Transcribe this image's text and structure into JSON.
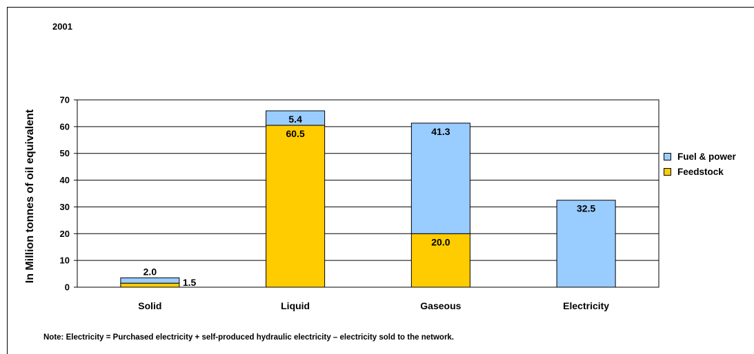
{
  "chart_data": {
    "type": "bar",
    "stacked": true,
    "title": "2001",
    "ylabel": "In Million tonnes of oil equivalent",
    "xlabel": "",
    "ylim": [
      0,
      70
    ],
    "yticks": [
      0,
      10,
      20,
      30,
      40,
      50,
      60,
      70
    ],
    "grid": true,
    "legend_position": "right",
    "categories": [
      "Solid",
      "Liquid",
      "Gaseous",
      "Electricity"
    ],
    "series": [
      {
        "name": "Feedstock",
        "color": "#FFCC00",
        "values": [
          1.5,
          60.5,
          20.0,
          0
        ],
        "labels": [
          "1.5",
          "60.5",
          "20.0",
          ""
        ]
      },
      {
        "name": "Fuel & power",
        "color": "#99CCFF",
        "values": [
          2.0,
          5.4,
          41.3,
          32.5
        ],
        "labels": [
          "2.0",
          "5.4",
          "41.3",
          "32.5"
        ]
      }
    ],
    "note": "Note: Electricity = Purchased electricity + self-produced hydraulic electricity – electricity sold to the network."
  }
}
